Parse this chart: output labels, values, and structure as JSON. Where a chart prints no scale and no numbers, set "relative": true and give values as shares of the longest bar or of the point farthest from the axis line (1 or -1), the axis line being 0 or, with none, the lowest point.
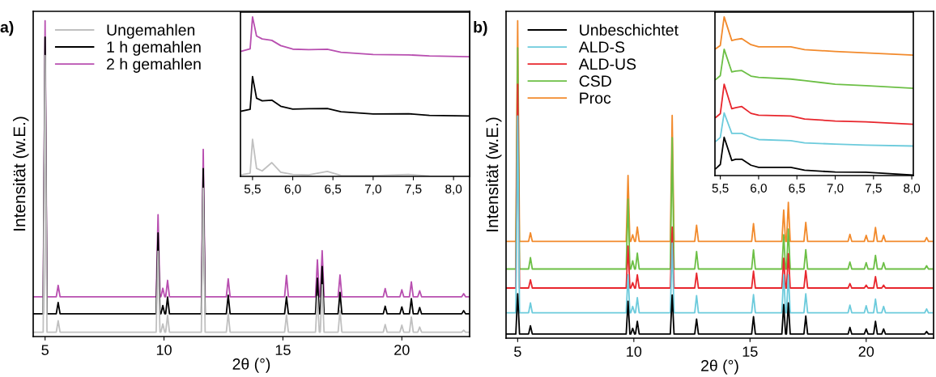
{
  "chart_data": [
    {
      "type": "line",
      "xlabel": "2θ (°)",
      "ylabel": "Intensität (w.E.)",
      "annotations": [
        "a)"
      ],
      "relative": true,
      "legend": "top left",
      "tick_labels": "x",
      "xlim": [
        4.5,
        22.85
      ],
      "xticks": [
        5,
        10,
        15,
        20
      ],
      "x": [
        4.5,
        4.92,
        5.0,
        5.08,
        5.47,
        5.55,
        5.63,
        9.67,
        9.75,
        9.83,
        9.87,
        9.95,
        10.03,
        10.07,
        10.15,
        10.23,
        11.57,
        11.65,
        11.73,
        12.62,
        12.7,
        12.78,
        15.07,
        15.15,
        15.23,
        16.37,
        16.45,
        16.53,
        16.57,
        16.65,
        16.73,
        17.32,
        17.4,
        17.48,
        19.22,
        19.3,
        19.38,
        19.92,
        20.0,
        20.08,
        20.32,
        20.4,
        20.48,
        20.67,
        20.75,
        20.83,
        22.52,
        22.6,
        22.68,
        22.85
      ],
      "series": [
        {
          "name": "Ungemahlen",
          "color": "#c0c0c0",
          "values": [
            0.014,
            0.014,
            0.89,
            0.014,
            0.014,
            0.05,
            0.014,
            0.014,
            0.27,
            0.014,
            0.014,
            0.04,
            0.014,
            0.014,
            0.067,
            0.014,
            0.014,
            0.47,
            0.014,
            0.014,
            0.073,
            0.014,
            0.014,
            0.068,
            0.014,
            0.014,
            0.127,
            0.014,
            0.014,
            0.164,
            0.014,
            0.014,
            0.082,
            0.014,
            0.014,
            0.038,
            0.014,
            0.014,
            0.036,
            0.014,
            0.014,
            0.062,
            0.014,
            0.014,
            0.03,
            0.014,
            0.014,
            0.02,
            0.014,
            0.014
          ]
        },
        {
          "name": "1 h gemahlen",
          "color": "#000000",
          "values": [
            0.072,
            0.072,
            0.948,
            0.072,
            0.072,
            0.108,
            0.072,
            0.072,
            0.328,
            0.072,
            0.072,
            0.098,
            0.072,
            0.072,
            0.125,
            0.072,
            0.072,
            0.532,
            0.072,
            0.072,
            0.131,
            0.072,
            0.072,
            0.126,
            0.072,
            0.072,
            0.185,
            0.072,
            0.072,
            0.222,
            0.072,
            0.072,
            0.14,
            0.072,
            0.072,
            0.096,
            0.072,
            0.072,
            0.094,
            0.072,
            0.072,
            0.12,
            0.072,
            0.072,
            0.092,
            0.072,
            0.072,
            0.082,
            0.072,
            0.072
          ]
        },
        {
          "name": "2 h gemahlen",
          "color": "#b84fb0",
          "values": [
            0.126,
            0.126,
            1.0,
            0.126,
            0.126,
            0.162,
            0.126,
            0.126,
            0.386,
            0.126,
            0.126,
            0.153,
            0.126,
            0.126,
            0.178,
            0.126,
            0.126,
            0.593,
            0.126,
            0.126,
            0.183,
            0.126,
            0.126,
            0.194,
            0.126,
            0.126,
            0.243,
            0.126,
            0.126,
            0.272,
            0.126,
            0.126,
            0.195,
            0.126,
            0.126,
            0.152,
            0.126,
            0.126,
            0.148,
            0.126,
            0.126,
            0.173,
            0.126,
            0.126,
            0.145,
            0.126,
            0.126,
            0.136,
            0.126,
            0.126
          ]
        }
      ]
    },
    {
      "type": "line",
      "relative": true,
      "tick_labels": "x",
      "xlim": [
        5.35,
        8.2
      ],
      "xticks": [
        {
          "value": 5.5,
          "label": "5,5"
        },
        {
          "value": 6.0,
          "label": "6,0"
        },
        {
          "value": 6.5,
          "label": "6,5"
        },
        {
          "value": 7.0,
          "label": "7,0"
        },
        {
          "value": 7.5,
          "label": "7,5"
        },
        {
          "value": 8.0,
          "label": "8,0"
        }
      ],
      "x": [
        5.36,
        5.47,
        5.5,
        5.55,
        5.62,
        5.74,
        5.85,
        6.0,
        6.2,
        6.43,
        6.6,
        7.0,
        7.44,
        7.7,
        8.2
      ],
      "series": [
        {
          "color": "#c0c0c0",
          "values": [
            0.01,
            0.02,
            0.233,
            0.05,
            0.034,
            0.086,
            0.026,
            0.012,
            0.009,
            0.031,
            0.006,
            0.004,
            0.012,
            0.002,
            0.0
          ]
        },
        {
          "color": "#000000",
          "values": [
            0.409,
            0.42,
            0.626,
            0.49,
            0.474,
            0.478,
            0.44,
            0.422,
            0.424,
            0.425,
            0.405,
            0.391,
            0.393,
            0.382,
            0.379
          ]
        },
        {
          "color": "#b84fb0",
          "values": [
            0.784,
            0.8,
            1.0,
            0.88,
            0.862,
            0.853,
            0.82,
            0.798,
            0.795,
            0.797,
            0.778,
            0.764,
            0.762,
            0.755,
            0.75
          ]
        }
      ]
    },
    {
      "type": "line",
      "xlabel": "2θ (°)",
      "ylabel": "Intensität (w.E.)",
      "annotations": [
        "b)"
      ],
      "relative": true,
      "legend": "top left",
      "tick_labels": "x",
      "xlim": [
        4.5,
        22.9
      ],
      "xticks": [
        5,
        10,
        15,
        20
      ],
      "x": [
        4.5,
        4.92,
        5.0,
        5.08,
        5.47,
        5.55,
        5.63,
        9.67,
        9.75,
        9.83,
        9.87,
        9.95,
        10.03,
        10.07,
        10.15,
        10.23,
        11.57,
        11.65,
        11.73,
        12.62,
        12.7,
        12.78,
        15.07,
        15.15,
        15.23,
        16.37,
        16.45,
        16.53,
        16.57,
        16.65,
        16.73,
        17.32,
        17.4,
        17.48,
        19.22,
        19.3,
        19.38,
        19.92,
        20.0,
        20.08,
        20.32,
        20.4,
        20.48,
        20.67,
        20.75,
        20.83,
        22.52,
        22.6,
        22.68,
        22.85
      ],
      "series": [
        {
          "name": "Unbeschichtet",
          "color": "#000000",
          "values": [
            0.013,
            0.013,
            0.14,
            0.013,
            0.013,
            0.039,
            0.013,
            0.013,
            0.116,
            0.013,
            0.013,
            0.031,
            0.013,
            0.013,
            0.053,
            0.013,
            0.013,
            0.136,
            0.013,
            0.013,
            0.06,
            0.013,
            0.013,
            0.068,
            0.013,
            0.013,
            0.106,
            0.013,
            0.013,
            0.111,
            0.013,
            0.013,
            0.07,
            0.013,
            0.013,
            0.034,
            0.013,
            0.013,
            0.029,
            0.013,
            0.013,
            0.053,
            0.013,
            0.013,
            0.029,
            0.013,
            0.013,
            0.021,
            0.013,
            0.013
          ]
        },
        {
          "name": "ALD-S",
          "color": "#6ccbdc",
          "values": [
            0.08,
            0.08,
            0.7,
            0.08,
            0.08,
            0.111,
            0.08,
            0.08,
            0.2,
            0.08,
            0.08,
            0.1,
            0.08,
            0.08,
            0.128,
            0.08,
            0.08,
            0.3,
            0.08,
            0.08,
            0.134,
            0.08,
            0.08,
            0.137,
            0.08,
            0.08,
            0.2,
            0.08,
            0.08,
            0.2,
            0.08,
            0.08,
            0.14,
            0.08,
            0.08,
            0.104,
            0.08,
            0.08,
            0.102,
            0.08,
            0.08,
            0.123,
            0.08,
            0.08,
            0.1,
            0.08,
            0.08,
            0.092,
            0.08,
            0.08
          ]
        },
        {
          "name": "ALD-US",
          "color": "#e8262d",
          "values": [
            0.158,
            0.158,
            0.8,
            0.158,
            0.158,
            0.184,
            0.158,
            0.158,
            0.29,
            0.158,
            0.158,
            0.175,
            0.158,
            0.158,
            0.2,
            0.158,
            0.158,
            0.35,
            0.158,
            0.158,
            0.205,
            0.158,
            0.158,
            0.211,
            0.158,
            0.158,
            0.252,
            0.158,
            0.158,
            0.266,
            0.158,
            0.158,
            0.213,
            0.158,
            0.158,
            0.172,
            0.158,
            0.158,
            0.167,
            0.158,
            0.158,
            0.194,
            0.158,
            0.158,
            0.167,
            0.158,
            0.158,
            0.158,
            0.158,
            0.158
          ]
        },
        {
          "name": "CSD",
          "color": "#6cbf45",
          "values": [
            0.218,
            0.218,
            0.915,
            0.218,
            0.218,
            0.254,
            0.218,
            0.218,
            0.438,
            0.218,
            0.218,
            0.244,
            0.218,
            0.218,
            0.268,
            0.218,
            0.218,
            0.632,
            0.218,
            0.218,
            0.273,
            0.218,
            0.218,
            0.278,
            0.218,
            0.218,
            0.326,
            0.218,
            0.218,
            0.344,
            0.218,
            0.218,
            0.279,
            0.218,
            0.218,
            0.24,
            0.218,
            0.218,
            0.238,
            0.218,
            0.218,
            0.261,
            0.218,
            0.218,
            0.238,
            0.218,
            0.218,
            0.228,
            0.218,
            0.218
          ]
        },
        {
          "name": "Proc",
          "color": "#f28a2c",
          "values": [
            0.305,
            0.305,
            1.0,
            0.305,
            0.305,
            0.332,
            0.305,
            0.305,
            0.513,
            0.305,
            0.305,
            0.326,
            0.305,
            0.305,
            0.35,
            0.305,
            0.305,
            0.702,
            0.305,
            0.305,
            0.356,
            0.305,
            0.305,
            0.361,
            0.305,
            0.305,
            0.404,
            0.305,
            0.305,
            0.428,
            0.305,
            0.305,
            0.365,
            0.305,
            0.305,
            0.327,
            0.305,
            0.305,
            0.324,
            0.305,
            0.305,
            0.349,
            0.305,
            0.305,
            0.324,
            0.305,
            0.305,
            0.317,
            0.305,
            0.305
          ]
        }
      ]
    },
    {
      "type": "line",
      "relative": true,
      "tick_labels": "x",
      "xlim": [
        5.43,
        8.02
      ],
      "xticks": [
        {
          "value": 5.5,
          "label": "5,5"
        },
        {
          "value": 6.0,
          "label": "6,0"
        },
        {
          "value": 6.5,
          "label": "6,5"
        },
        {
          "value": 7.0,
          "label": "7,0"
        },
        {
          "value": 7.5,
          "label": "7,5"
        },
        {
          "value": 8.0,
          "label": "8,0"
        }
      ],
      "x": [
        5.44,
        5.5,
        5.55,
        5.65,
        5.7,
        5.78,
        5.9,
        6.0,
        6.42,
        6.6,
        7.0,
        7.4,
        8.02
      ],
      "series": [
        {
          "color": "#000000",
          "values": [
            0.043,
            0.07,
            0.241,
            0.095,
            0.103,
            0.103,
            0.065,
            0.052,
            0.052,
            0.034,
            0.022,
            0.021,
            0.003
          ]
        },
        {
          "color": "#6ccbdc",
          "values": [
            0.215,
            0.24,
            0.395,
            0.266,
            0.266,
            0.266,
            0.241,
            0.227,
            0.22,
            0.206,
            0.198,
            0.192,
            0.186
          ]
        },
        {
          "color": "#e8262d",
          "values": [
            0.366,
            0.39,
            0.576,
            0.421,
            0.428,
            0.435,
            0.392,
            0.381,
            0.375,
            0.356,
            0.344,
            0.338,
            0.323
          ]
        },
        {
          "color": "#6cbf45",
          "values": [
            0.605,
            0.63,
            0.796,
            0.653,
            0.658,
            0.662,
            0.627,
            0.619,
            0.608,
            0.598,
            0.576,
            0.567,
            0.55
          ]
        },
        {
          "color": "#f28a2c",
          "values": [
            0.799,
            0.82,
            1.0,
            0.851,
            0.857,
            0.863,
            0.825,
            0.811,
            0.811,
            0.794,
            0.782,
            0.773,
            0.759
          ]
        }
      ]
    }
  ]
}
